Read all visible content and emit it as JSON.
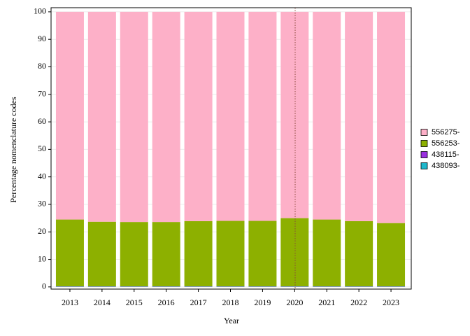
{
  "chart_data": {
    "type": "stacked_bar",
    "x_label": "Year",
    "y_label": "Percentage nomenclature codes",
    "categories": [
      "2013",
      "2014",
      "2015",
      "2016",
      "2017",
      "2018",
      "2019",
      "2020",
      "2021",
      "2022",
      "2023"
    ],
    "series": [
      {
        "name": "438093-",
        "color": "#1fb8cc",
        "values": [
          0.1,
          0.1,
          0.1,
          0.1,
          0.1,
          0.1,
          0.1,
          0.1,
          0.1,
          0.1,
          0.1
        ]
      },
      {
        "name": "438115-",
        "color": "#9b30e0",
        "values": [
          0.1,
          0.1,
          0.1,
          0.1,
          0.1,
          0.1,
          0.1,
          0.1,
          0.1,
          0.1,
          0.1
        ]
      },
      {
        "name": "556253-",
        "color": "#8db000",
        "values": [
          24.3,
          23.5,
          23.4,
          23.4,
          23.7,
          23.8,
          23.8,
          24.8,
          24.3,
          23.7,
          23.0
        ]
      },
      {
        "name": "556275-",
        "color": "#fdb0c8",
        "values": [
          75.5,
          76.3,
          76.4,
          76.4,
          76.1,
          76.0,
          76.0,
          75.0,
          75.5,
          76.1,
          76.8
        ]
      }
    ],
    "ylim": [
      -0.8,
      101.5
    ],
    "yticks": [
      0,
      10,
      20,
      30,
      40,
      50,
      60,
      70,
      80,
      90,
      100
    ],
    "grid": true
  }
}
